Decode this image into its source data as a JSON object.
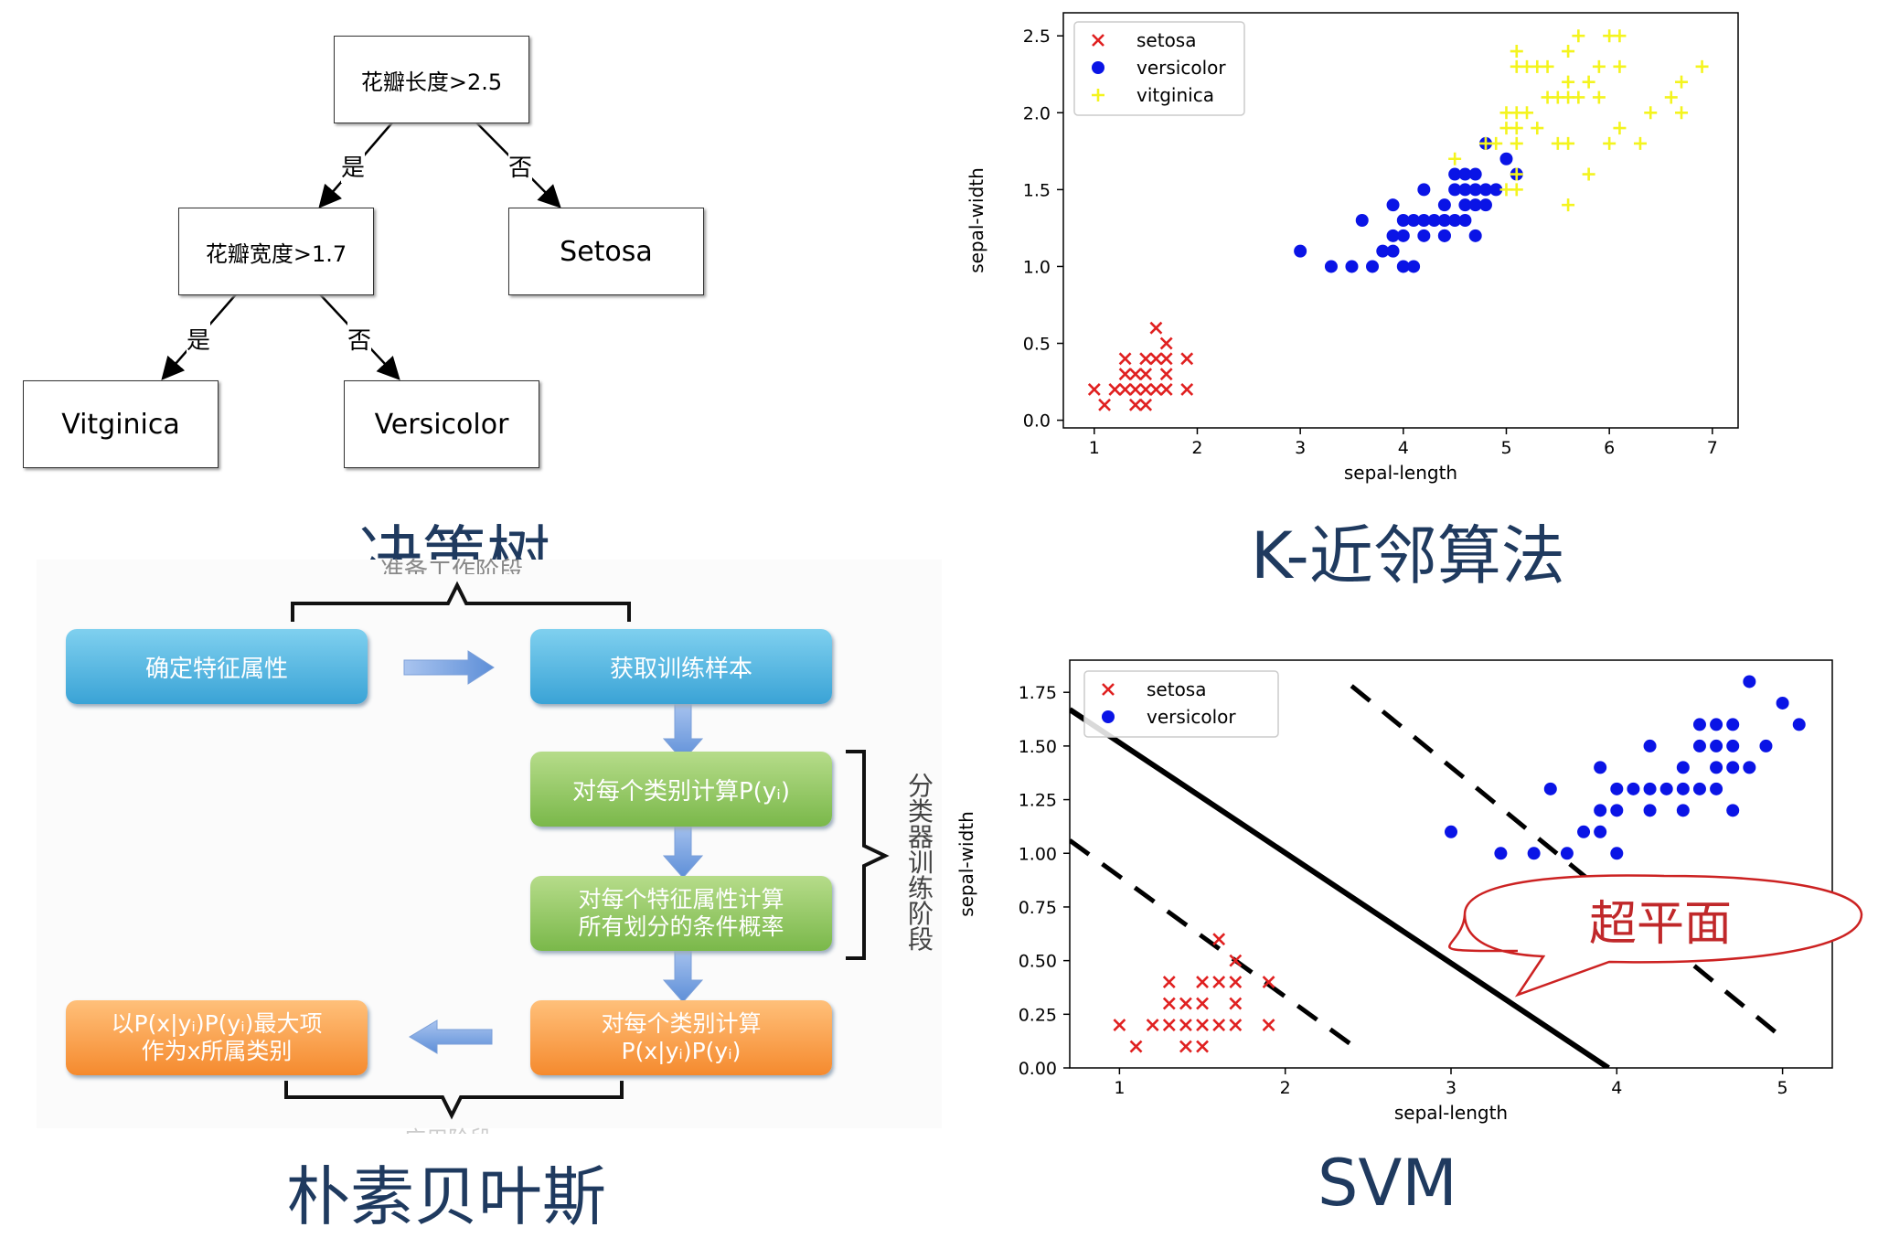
{
  "captions": {
    "decision_tree": "决策树",
    "knn": "K-近邻算法",
    "naive_bayes": "朴素贝叶斯",
    "svm": "SVM"
  },
  "decision_tree": {
    "root": "花瓣长度>2.5",
    "mid": "花瓣宽度>1.7",
    "setosa": "Setosa",
    "vitginica": "Vitginica",
    "versicolor": "Versicolor",
    "yes1": "是",
    "no1": "否",
    "yes2": "是",
    "no2": "否"
  },
  "naive_bayes": {
    "prep_label": "准备工作阶段",
    "box1": "确定特征属性",
    "box2": "获取训练样本",
    "box3": "对每个类别计算P(yᵢ)",
    "box4a": "对每个特征属性计算",
    "box4b": "所有划分的条件概率",
    "box5a": "对每个类别计算",
    "box5b": "P(x|yᵢ)P(yᵢ)",
    "box6a": "以P(x|yᵢ)P(yᵢ)最大项",
    "box6b": "作为x所属类别",
    "train_label": [
      "分",
      "类",
      "器",
      "训",
      "练",
      "阶",
      "段"
    ],
    "apply_label": "应用阶段"
  },
  "svm_callout": "超平面",
  "colors": {
    "setosa": "#e02020",
    "versicolor": "#0a14e6",
    "vitginica": "#f4f41e",
    "caption": "#1f3a5f"
  },
  "chart_data": [
    {
      "type": "scatter",
      "xlabel": "sepal-length",
      "ylabel": "sepal-width",
      "xlim": [
        0.7,
        7.25
      ],
      "ylim": [
        -0.05,
        2.65
      ],
      "xticks": [
        1,
        2,
        3,
        4,
        5,
        6,
        7
      ],
      "yticks": [
        0.0,
        0.5,
        1.0,
        1.5,
        2.0,
        2.5
      ],
      "legend": "top-left",
      "series": [
        {
          "name": "setosa",
          "marker": "x",
          "color": "#e02020",
          "points": [
            [
              1.0,
              0.2
            ],
            [
              1.1,
              0.1
            ],
            [
              1.2,
              0.2
            ],
            [
              1.3,
              0.2
            ],
            [
              1.3,
              0.3
            ],
            [
              1.3,
              0.4
            ],
            [
              1.4,
              0.1
            ],
            [
              1.4,
              0.2
            ],
            [
              1.4,
              0.3
            ],
            [
              1.5,
              0.1
            ],
            [
              1.5,
              0.2
            ],
            [
              1.5,
              0.3
            ],
            [
              1.5,
              0.4
            ],
            [
              1.6,
              0.2
            ],
            [
              1.6,
              0.4
            ],
            [
              1.6,
              0.6
            ],
            [
              1.7,
              0.2
            ],
            [
              1.7,
              0.3
            ],
            [
              1.7,
              0.4
            ],
            [
              1.7,
              0.5
            ],
            [
              1.9,
              0.2
            ],
            [
              1.9,
              0.4
            ]
          ]
        },
        {
          "name": "versicolor",
          "marker": "o",
          "color": "#0a14e6",
          "points": [
            [
              3.0,
              1.1
            ],
            [
              3.3,
              1.0
            ],
            [
              3.5,
              1.0
            ],
            [
              3.6,
              1.3
            ],
            [
              3.7,
              1.0
            ],
            [
              3.8,
              1.1
            ],
            [
              3.9,
              1.1
            ],
            [
              3.9,
              1.2
            ],
            [
              3.9,
              1.4
            ],
            [
              4.0,
              1.0
            ],
            [
              4.0,
              1.2
            ],
            [
              4.0,
              1.3
            ],
            [
              4.1,
              1.0
            ],
            [
              4.1,
              1.3
            ],
            [
              4.2,
              1.2
            ],
            [
              4.2,
              1.3
            ],
            [
              4.2,
              1.5
            ],
            [
              4.3,
              1.3
            ],
            [
              4.4,
              1.2
            ],
            [
              4.4,
              1.3
            ],
            [
              4.4,
              1.4
            ],
            [
              4.5,
              1.3
            ],
            [
              4.5,
              1.5
            ],
            [
              4.6,
              1.3
            ],
            [
              4.6,
              1.4
            ],
            [
              4.6,
              1.5
            ],
            [
              4.7,
              1.2
            ],
            [
              4.7,
              1.4
            ],
            [
              4.7,
              1.5
            ],
            [
              4.7,
              1.6
            ],
            [
              4.8,
              1.4
            ],
            [
              4.8,
              1.8
            ],
            [
              4.9,
              1.5
            ],
            [
              5.0,
              1.7
            ],
            [
              5.1,
              1.6
            ],
            [
              4.5,
              1.6
            ],
            [
              4.4,
              1.2
            ],
            [
              4.6,
              1.6
            ],
            [
              4.8,
              1.5
            ]
          ]
        },
        {
          "name": "vitginica",
          "marker": "+",
          "color": "#f4f41e",
          "points": [
            [
              4.5,
              1.7
            ],
            [
              4.8,
              1.8
            ],
            [
              4.9,
              1.8
            ],
            [
              5.0,
              1.5
            ],
            [
              5.0,
              1.9
            ],
            [
              5.0,
              2.0
            ],
            [
              5.1,
              1.5
            ],
            [
              5.1,
              1.6
            ],
            [
              5.1,
              1.8
            ],
            [
              5.1,
              1.9
            ],
            [
              5.1,
              2.0
            ],
            [
              5.1,
              2.3
            ],
            [
              5.1,
              2.4
            ],
            [
              5.2,
              2.0
            ],
            [
              5.2,
              2.3
            ],
            [
              5.3,
              1.9
            ],
            [
              5.3,
              2.3
            ],
            [
              5.4,
              2.1
            ],
            [
              5.4,
              2.3
            ],
            [
              5.5,
              1.8
            ],
            [
              5.5,
              2.1
            ],
            [
              5.6,
              1.4
            ],
            [
              5.6,
              1.8
            ],
            [
              5.6,
              2.1
            ],
            [
              5.6,
              2.2
            ],
            [
              5.6,
              2.4
            ],
            [
              5.7,
              2.1
            ],
            [
              5.7,
              2.5
            ],
            [
              5.8,
              1.6
            ],
            [
              5.8,
              2.2
            ],
            [
              5.9,
              2.1
            ],
            [
              5.9,
              2.3
            ],
            [
              6.0,
              1.8
            ],
            [
              6.0,
              2.5
            ],
            [
              6.1,
              1.9
            ],
            [
              6.1,
              2.3
            ],
            [
              6.1,
              2.5
            ],
            [
              6.3,
              1.8
            ],
            [
              6.4,
              2.0
            ],
            [
              6.6,
              2.1
            ],
            [
              6.7,
              2.0
            ],
            [
              6.7,
              2.2
            ],
            [
              6.9,
              2.3
            ]
          ]
        }
      ]
    },
    {
      "type": "scatter",
      "xlabel": "sepal-length",
      "ylabel": "sepal-width",
      "xlim": [
        0.7,
        5.3
      ],
      "ylim": [
        0.0,
        1.9
      ],
      "xticks": [
        1,
        2,
        3,
        4,
        5
      ],
      "yticks": [
        0.0,
        0.25,
        0.5,
        0.75,
        1.0,
        1.25,
        1.5,
        1.75
      ],
      "legend": "top-left",
      "lines": [
        {
          "style": "solid",
          "points": [
            [
              0.7,
              1.67
            ],
            [
              3.95,
              0.0
            ]
          ]
        },
        {
          "style": "dashed",
          "points": [
            [
              2.4,
              1.78
            ],
            [
              5.0,
              0.14
            ]
          ]
        },
        {
          "style": "dashed",
          "points": [
            [
              0.7,
              1.06
            ],
            [
              2.45,
              0.08
            ]
          ]
        }
      ],
      "series": [
        {
          "name": "setosa",
          "marker": "x",
          "color": "#e02020",
          "points": [
            [
              1.0,
              0.2
            ],
            [
              1.1,
              0.1
            ],
            [
              1.2,
              0.2
            ],
            [
              1.3,
              0.2
            ],
            [
              1.3,
              0.3
            ],
            [
              1.3,
              0.4
            ],
            [
              1.4,
              0.1
            ],
            [
              1.4,
              0.2
            ],
            [
              1.4,
              0.3
            ],
            [
              1.5,
              0.1
            ],
            [
              1.5,
              0.2
            ],
            [
              1.5,
              0.3
            ],
            [
              1.5,
              0.4
            ],
            [
              1.6,
              0.2
            ],
            [
              1.6,
              0.4
            ],
            [
              1.6,
              0.6
            ],
            [
              1.7,
              0.2
            ],
            [
              1.7,
              0.3
            ],
            [
              1.7,
              0.4
            ],
            [
              1.7,
              0.5
            ],
            [
              1.9,
              0.2
            ],
            [
              1.9,
              0.4
            ]
          ]
        },
        {
          "name": "versicolor",
          "marker": "o",
          "color": "#0a14e6",
          "points": [
            [
              3.0,
              1.1
            ],
            [
              3.3,
              1.0
            ],
            [
              3.5,
              1.0
            ],
            [
              3.6,
              1.3
            ],
            [
              3.7,
              1.0
            ],
            [
              3.8,
              1.1
            ],
            [
              3.9,
              1.1
            ],
            [
              3.9,
              1.2
            ],
            [
              3.9,
              1.4
            ],
            [
              4.0,
              1.0
            ],
            [
              4.0,
              1.2
            ],
            [
              4.0,
              1.3
            ],
            [
              4.1,
              1.3
            ],
            [
              4.2,
              1.2
            ],
            [
              4.2,
              1.3
            ],
            [
              4.2,
              1.5
            ],
            [
              4.3,
              1.3
            ],
            [
              4.4,
              1.2
            ],
            [
              4.4,
              1.3
            ],
            [
              4.4,
              1.4
            ],
            [
              4.5,
              1.3
            ],
            [
              4.5,
              1.5
            ],
            [
              4.5,
              1.6
            ],
            [
              4.6,
              1.3
            ],
            [
              4.6,
              1.4
            ],
            [
              4.6,
              1.5
            ],
            [
              4.6,
              1.6
            ],
            [
              4.7,
              1.2
            ],
            [
              4.7,
              1.4
            ],
            [
              4.7,
              1.5
            ],
            [
              4.7,
              1.6
            ],
            [
              4.8,
              1.4
            ],
            [
              4.8,
              1.8
            ],
            [
              4.9,
              1.5
            ],
            [
              5.0,
              1.7
            ],
            [
              5.1,
              1.6
            ]
          ]
        }
      ]
    }
  ]
}
